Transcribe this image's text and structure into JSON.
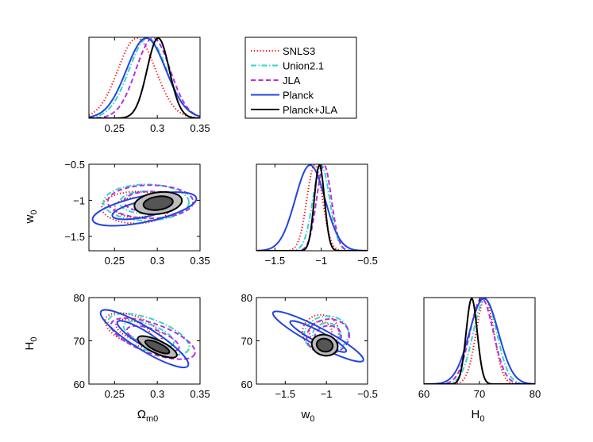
{
  "legend": {
    "placement": "top-right",
    "entries": [
      {
        "label": "SNLS3",
        "color": "#ff0000",
        "dash": "1.2 2.6"
      },
      {
        "label": "Union2.1",
        "color": "#33d6c8",
        "dash": "7 2.5 1.5 2.5"
      },
      {
        "label": "JLA",
        "color": "#b030e8",
        "dash": "6 3.5"
      },
      {
        "label": "Planck",
        "color": "#2244e0",
        "dash": "none"
      },
      {
        "label": "Planck+JLA",
        "color": "#000000",
        "dash": "none"
      }
    ]
  },
  "chart_data": [
    {
      "type": "line",
      "id": "om-marginal",
      "x_range": [
        0.22,
        0.35
      ],
      "xticks": [
        "0.25",
        "0.3",
        "0.35"
      ],
      "xtick_values": [
        0.25,
        0.3,
        0.35
      ],
      "xlabel": "",
      "series": [
        {
          "name": "SNLS3",
          "peak": 0.276,
          "sigma": 0.022
        },
        {
          "name": "Union2.1",
          "peak": 0.289,
          "sigma": 0.022
        },
        {
          "name": "JLA",
          "peak": 0.295,
          "sigma": 0.02
        },
        {
          "name": "Planck",
          "peak": 0.287,
          "sigma": 0.023
        },
        {
          "name": "Planck+JLA",
          "peak": 0.301,
          "sigma": 0.013
        }
      ]
    },
    {
      "type": "line",
      "id": "w0-marginal",
      "x_range": [
        -1.7,
        -0.5
      ],
      "xticks": [
        "−1.5",
        "−1",
        "−0.5"
      ],
      "xtick_values": [
        -1.5,
        -1,
        -0.5
      ],
      "xlabel": "",
      "series": [
        {
          "name": "SNLS3",
          "peak": -1.07,
          "sigma": 0.085
        },
        {
          "name": "Union2.1",
          "peak": -1.0,
          "sigma": 0.09
        },
        {
          "name": "JLA",
          "peak": -0.97,
          "sigma": 0.08
        },
        {
          "name": "Planck",
          "peak": -1.12,
          "sigma": 0.16
        },
        {
          "name": "Planck+JLA",
          "peak": -1.02,
          "sigma": 0.055
        }
      ]
    },
    {
      "type": "line",
      "id": "h0-marginal",
      "x_range": [
        60,
        80
      ],
      "xticks": [
        "60",
        "70",
        "80"
      ],
      "xtick_values": [
        60,
        70,
        80
      ],
      "xlabel": "H0",
      "series": [
        {
          "name": "SNLS3",
          "peak": 71.0,
          "sigma": 1.6
        },
        {
          "name": "Union2.1",
          "peak": 71.0,
          "sigma": 2.1
        },
        {
          "name": "JLA",
          "peak": 70.4,
          "sigma": 2.1
        },
        {
          "name": "Planck",
          "peak": 70.8,
          "sigma": 2.6
        },
        {
          "name": "Planck+JLA",
          "peak": 68.6,
          "sigma": 1.0
        }
      ]
    },
    {
      "type": "scatter",
      "id": "om-w0-contours",
      "x_range": [
        0.22,
        0.35
      ],
      "y_range": [
        -1.7,
        -0.5
      ],
      "xticks": [
        "0.25",
        "0.3",
        "0.35"
      ],
      "xtick_values": [
        0.25,
        0.3,
        0.35
      ],
      "yticks": [
        "−0.5",
        "−1",
        "−1.5"
      ],
      "ytick_values": [
        -0.5,
        -1,
        -1.5
      ],
      "ylabel": "w0",
      "contours": [
        {
          "name": "SNLS3",
          "cx": 0.275,
          "cy": -1.1,
          "rx": 0.04,
          "ry": 0.22,
          "rot": 0,
          "levels": 2
        },
        {
          "name": "Union2.1",
          "cx": 0.287,
          "cy": -1.03,
          "rx": 0.05,
          "ry": 0.25,
          "rot": 0,
          "levels": 2
        },
        {
          "name": "JLA",
          "cx": 0.292,
          "cy": -1.02,
          "rx": 0.05,
          "ry": 0.23,
          "rot": 0,
          "levels": 2
        },
        {
          "name": "Planck",
          "cx": 0.285,
          "cy": -1.12,
          "rx": 0.062,
          "ry": 0.18,
          "rot": -12,
          "levels": 2
        },
        {
          "name": "Planck+JLA",
          "cx": 0.301,
          "cy": -1.04,
          "rx": 0.028,
          "ry": 0.15,
          "rot": -8,
          "levels": 2,
          "filled": true
        }
      ]
    },
    {
      "type": "scatter",
      "id": "om-h0-contours",
      "x_range": [
        0.22,
        0.35
      ],
      "y_range": [
        60,
        80
      ],
      "xticks": [
        "0.25",
        "0.3",
        "0.35"
      ],
      "xtick_values": [
        0.25,
        0.3,
        0.35
      ],
      "yticks": [
        "60",
        "70",
        "80"
      ],
      "ytick_values": [
        60,
        70,
        80
      ],
      "xlabel": "Ωm0",
      "ylabel": "H0",
      "contours": [
        {
          "name": "SNLS3",
          "cx": 0.272,
          "cy": 72.5,
          "rx": 0.035,
          "ry": 3.2,
          "rot": 22,
          "levels": 2
        },
        {
          "name": "Union2.1",
          "cx": 0.29,
          "cy": 71.5,
          "rx": 0.05,
          "ry": 3.6,
          "rot": 20,
          "levels": 2
        },
        {
          "name": "JLA",
          "cx": 0.295,
          "cy": 70.5,
          "rx": 0.052,
          "ry": 3.4,
          "rot": 20,
          "levels": 2
        },
        {
          "name": "Planck",
          "cx": 0.285,
          "cy": 70.5,
          "rx": 0.06,
          "ry": 2.6,
          "rot": 32,
          "levels": 2
        },
        {
          "name": "Planck+JLA",
          "cx": 0.3,
          "cy": 68.6,
          "rx": 0.025,
          "ry": 1.5,
          "rot": 25,
          "levels": 2,
          "filled": true
        }
      ]
    },
    {
      "type": "scatter",
      "id": "w0-h0-contours",
      "x_range": [
        -1.85,
        -0.5
      ],
      "y_range": [
        60,
        80
      ],
      "xticks": [
        "−1.5",
        "−1",
        "−0.5"
      ],
      "xtick_values": [
        -1.5,
        -1,
        -0.5
      ],
      "yticks": [
        "60",
        "70",
        "80"
      ],
      "ytick_values": [
        60,
        70,
        80
      ],
      "xlabel": "w0",
      "ylabel": "",
      "contours": [
        {
          "name": "SNLS3",
          "cx": -1.07,
          "cy": 72.0,
          "rx": 0.22,
          "ry": 4.0,
          "rot": -5,
          "levels": 2
        },
        {
          "name": "Union2.1",
          "cx": -1.0,
          "cy": 71.5,
          "rx": 0.27,
          "ry": 4.2,
          "rot": -8,
          "levels": 2
        },
        {
          "name": "JLA",
          "cx": -0.98,
          "cy": 71.0,
          "rx": 0.26,
          "ry": 4.0,
          "rot": -8,
          "levels": 2
        },
        {
          "name": "Planck",
          "cx": -1.1,
          "cy": 71.0,
          "rx": 0.62,
          "ry": 2.0,
          "rot": 28,
          "levels": 2
        },
        {
          "name": "Planck+JLA",
          "cx": -1.02,
          "cy": 69.0,
          "rx": 0.16,
          "ry": 2.4,
          "rot": 15,
          "levels": 2,
          "filled": true
        }
      ]
    }
  ]
}
